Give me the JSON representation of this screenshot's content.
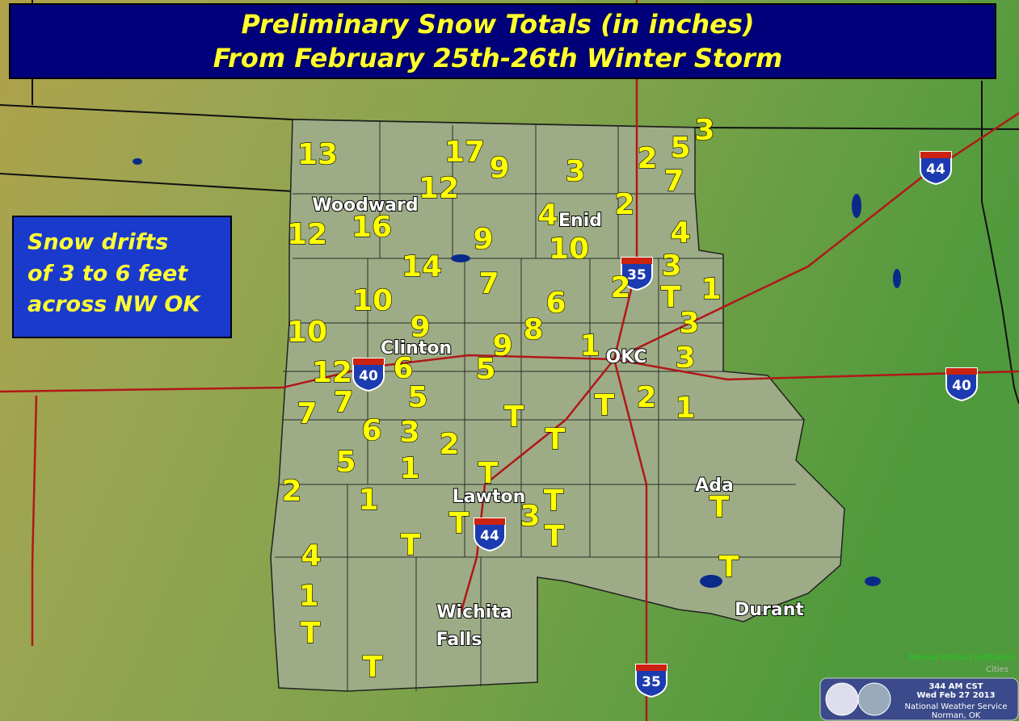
{
  "header": {
    "title_lines": [
      "Preliminary Snow Totals (in inches)",
      "From February 25th-26th Winter Storm"
    ]
  },
  "callout": {
    "lines": [
      "Snow drifts",
      "of 3 to 6 feet",
      "across NW OK"
    ]
  },
  "cities": [
    "Woodward",
    "Enid",
    "Clinton",
    "OKC",
    "Lawton",
    "Ada",
    "Wichita",
    "Falls",
    "Durant"
  ],
  "interstates": [
    "44",
    "35",
    "40",
    "40",
    "44",
    "35"
  ],
  "snow_totals": [
    "13",
    "17",
    "9",
    "3",
    "2",
    "5",
    "3",
    "7",
    "12",
    "4",
    "2",
    "12",
    "16",
    "9",
    "10",
    "4",
    "14",
    "3",
    "7",
    "2",
    "T",
    "1",
    "10",
    "6",
    "3",
    "10",
    "9",
    "8",
    "9",
    "1",
    "3",
    "12",
    "6",
    "5",
    "7",
    "7",
    "5",
    "2",
    "T",
    "1",
    "T",
    "6",
    "3",
    "T",
    "2",
    "5",
    "1",
    "T",
    "2",
    "1",
    "T",
    "T",
    "T",
    "3",
    "T",
    "T",
    "4",
    "T",
    "1",
    "T",
    "T"
  ],
  "footer": {
    "product": "Manual Product (editable)",
    "layer": "Cities",
    "time": "344 AM CST",
    "date": "Wed Feb 27 2013",
    "office": "National Weather Service",
    "location": "Norman, OK"
  }
}
